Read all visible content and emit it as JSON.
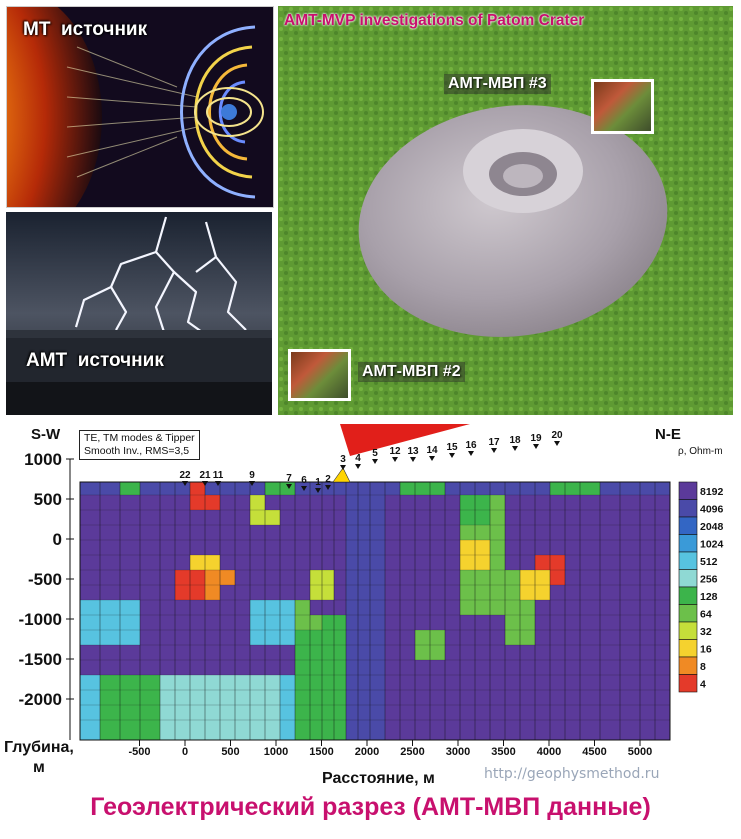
{
  "panels": {
    "mt": {
      "label": "MT  источник"
    },
    "amt": {
      "label": "AMT  источник"
    },
    "crater": {
      "title": "AMT-MVP investigations of Patom Crater",
      "site3": "АМТ-МВП #3",
      "site2": "АМТ-МВП #2"
    }
  },
  "section": {
    "left_label": "S-W",
    "right_label": "N-E",
    "info_line1": "TE, TM modes & Tipper",
    "info_line2": "Smooth Inv., RMS=3,5",
    "y_axis_title_line1": "Глубина,",
    "y_axis_title_line2": "м",
    "x_axis_title": "Расстояние, м",
    "y_ticks": [
      "1000",
      "500",
      "0",
      "-500",
      "-1000",
      "-1500",
      "-2000"
    ],
    "x_ticks": [
      "-500",
      "0",
      "500",
      "1000",
      "1500",
      "2000",
      "2500",
      "3000",
      "3500",
      "4000",
      "4500",
      "5000"
    ],
    "stations": [
      "22",
      "21",
      "11",
      "9",
      "7",
      "6",
      "1",
      "2",
      "3",
      "4",
      "5",
      "12",
      "13",
      "14",
      "15",
      "16",
      "17",
      "18",
      "19",
      "20"
    ],
    "legend_title": "ρ, Ohm-m",
    "legend_values": [
      "8192",
      "4096",
      "2048",
      "1024",
      "512",
      "256",
      "128",
      "64",
      "32",
      "16",
      "8",
      "4"
    ],
    "legend_colors": [
      "#5b3a9a",
      "#4a4aa8",
      "#3366c4",
      "#3a9ad8",
      "#57c3e0",
      "#8fd9d4",
      "#3cb44b",
      "#6cc04a",
      "#c5df3a",
      "#f5d22e",
      "#f08a24",
      "#e43a2a"
    ]
  },
  "footer": {
    "title": "Геоэлектрический разрез (АМТ-МВП данные)",
    "watermark": "http://geophysmethod.ru"
  }
}
